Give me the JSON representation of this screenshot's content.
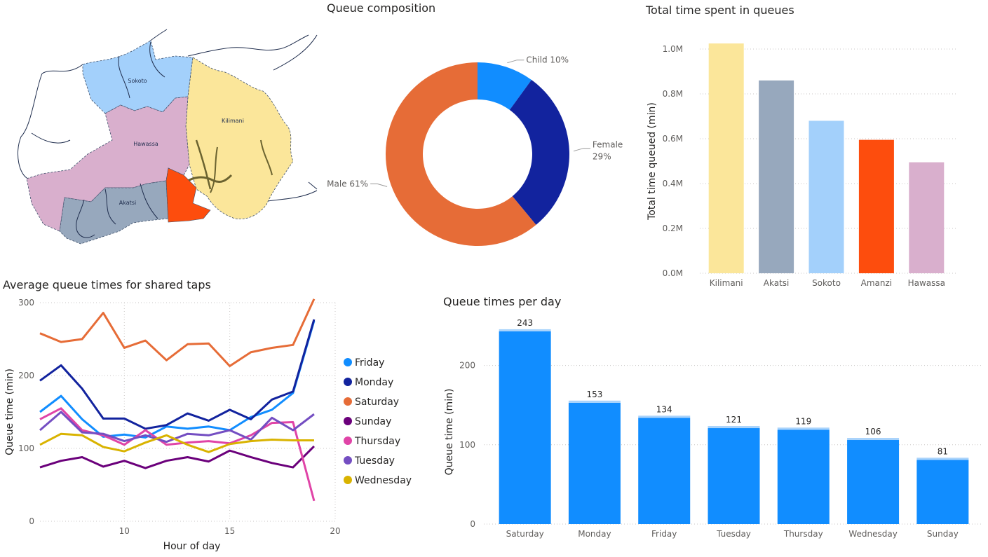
{
  "panels": {
    "composition_title": "Queue composition",
    "total_title": "Total time spent in queues",
    "avg_title": "Average queue times for shared taps",
    "perday_title": "Queue times per day"
  },
  "map": {
    "regions": [
      {
        "name": "Sokoto",
        "color": "#a3d0fb"
      },
      {
        "name": "Kilimani",
        "color": "#fbe69a"
      },
      {
        "name": "Hawassa",
        "color": "#d9afcd"
      },
      {
        "name": "Akatsi",
        "color": "#97a8bd"
      },
      {
        "name": "Amanzi",
        "color": "#fd4d0d"
      }
    ]
  },
  "chart_data": [
    {
      "id": "composition",
      "type": "pie",
      "donut": true,
      "title": "Queue composition",
      "slices": [
        {
          "label": "Child 10%",
          "value": 10,
          "color": "#118dff"
        },
        {
          "label": "Female 29%",
          "value": 29,
          "color": "#12239e"
        },
        {
          "label": "Male 61%",
          "value": 61,
          "color": "#e66c37"
        }
      ]
    },
    {
      "id": "total",
      "type": "bar",
      "title": "Total time spent in queues",
      "ylabel": "Total time queued (min)",
      "ylim": [
        0,
        1000000
      ],
      "yticks": [
        {
          "value": 0,
          "label": "0.0M"
        },
        {
          "value": 200000,
          "label": "0.2M"
        },
        {
          "value": 400000,
          "label": "0.4M"
        },
        {
          "value": 600000,
          "label": "0.6M"
        },
        {
          "value": 800000,
          "label": "0.8M"
        },
        {
          "value": 1000000,
          "label": "1.0M"
        }
      ],
      "categories": [
        "Kilimani",
        "Akatsi",
        "Sokoto",
        "Amanzi",
        "Hawassa"
      ],
      "values": [
        1025000,
        860000,
        680000,
        595000,
        495000
      ],
      "colors": [
        "#fbe69a",
        "#97a8bd",
        "#a3d0fb",
        "#fd4d0d",
        "#d9afcd"
      ],
      "grid": true
    },
    {
      "id": "avg",
      "type": "line",
      "title": "Average queue times for shared taps",
      "xlabel": "Hour of day",
      "ylabel": "Queue time (min)",
      "xlim": [
        6,
        20
      ],
      "ylim": [
        0,
        300
      ],
      "xticks": [
        10,
        15,
        20
      ],
      "yticks": [
        0,
        100,
        200,
        300
      ],
      "legend": "right",
      "grid": true,
      "x": [
        6,
        7,
        8,
        9,
        10,
        11,
        12,
        13,
        14,
        15,
        16,
        17,
        18,
        19
      ],
      "series": [
        {
          "name": "Friday",
          "color": "#118dff",
          "values": [
            150,
            172,
            140,
            116,
            119,
            115,
            130,
            127,
            130,
            125,
            143,
            153,
            176,
            275
          ]
        },
        {
          "name": "Monday",
          "color": "#12239e",
          "values": [
            193,
            214,
            182,
            141,
            141,
            127,
            132,
            148,
            138,
            153,
            140,
            167,
            178,
            277
          ]
        },
        {
          "name": "Saturday",
          "color": "#e66c37",
          "values": [
            258,
            246,
            250,
            286,
            238,
            248,
            221,
            243,
            244,
            213,
            232,
            238,
            242,
            305
          ]
        },
        {
          "name": "Sunday",
          "color": "#6b007b",
          "values": [
            74,
            83,
            88,
            75,
            83,
            73,
            83,
            88,
            82,
            97,
            88,
            80,
            74,
            103
          ]
        },
        {
          "name": "Thursday",
          "color": "#e044a7",
          "values": [
            140,
            155,
            125,
            118,
            105,
            125,
            105,
            108,
            110,
            107,
            118,
            135,
            136,
            28
          ]
        },
        {
          "name": "Tuesday",
          "color": "#744ec2",
          "values": [
            125,
            150,
            122,
            120,
            110,
            118,
            109,
            120,
            118,
            125,
            112,
            142,
            125,
            147
          ]
        },
        {
          "name": "Wednesday",
          "color": "#d9b300",
          "values": [
            105,
            120,
            118,
            102,
            96,
            108,
            118,
            105,
            95,
            106,
            110,
            112,
            111,
            111
          ]
        }
      ]
    },
    {
      "id": "perday",
      "type": "bar",
      "title": "Queue times per day",
      "ylabel": "Queue time (min)",
      "ylim": [
        0,
        250
      ],
      "yticks": [
        0,
        100,
        200
      ],
      "grid": true,
      "color": "#118dff",
      "categories": [
        "Saturday",
        "Monday",
        "Friday",
        "Tuesday",
        "Thursday",
        "Wednesday",
        "Sunday"
      ],
      "values": [
        243,
        153,
        134,
        121,
        119,
        106,
        81
      ]
    }
  ]
}
